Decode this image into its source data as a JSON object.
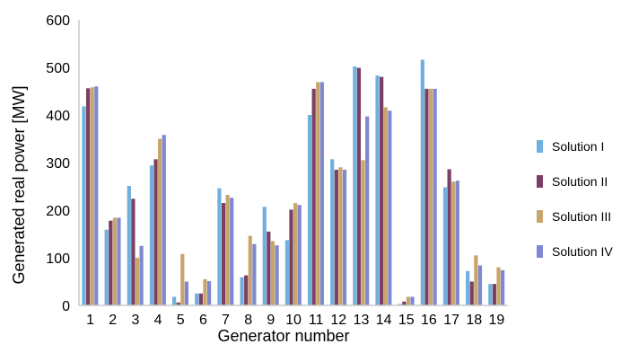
{
  "chart_data": {
    "type": "bar",
    "xlabel": "Generator number",
    "ylabel": "Generated real power [MW]",
    "ylim": [
      0,
      600
    ],
    "yticks": [
      0,
      100,
      200,
      300,
      400,
      500,
      600
    ],
    "grid": false,
    "legend_position": "right",
    "categories": [
      "1",
      "2",
      "3",
      "4",
      "5",
      "6",
      "7",
      "8",
      "9",
      "10",
      "11",
      "12",
      "13",
      "14",
      "15",
      "16",
      "17",
      "18",
      "19"
    ],
    "series": [
      {
        "name": "Solution I",
        "color": "#6fb0dc",
        "values": [
          418,
          159,
          251,
          294,
          18,
          25,
          246,
          59,
          207,
          137,
          400,
          307,
          502,
          483,
          3,
          516,
          248,
          72,
          45
        ]
      },
      {
        "name": "Solution II",
        "color": "#7b3f63",
        "values": [
          456,
          178,
          224,
          307,
          6,
          25,
          215,
          63,
          155,
          201,
          455,
          285,
          499,
          480,
          8,
          455,
          286,
          50,
          45
        ]
      },
      {
        "name": "Solution III",
        "color": "#c8a56a",
        "values": [
          458,
          184,
          100,
          350,
          108,
          55,
          232,
          146,
          135,
          215,
          469,
          290,
          305,
          416,
          18,
          455,
          260,
          105,
          80
        ]
      },
      {
        "name": "Solution IV",
        "color": "#7f88d0",
        "values": [
          460,
          184,
          125,
          358,
          50,
          51,
          226,
          129,
          126,
          211,
          469,
          285,
          397,
          409,
          18,
          455,
          262,
          84,
          74
        ]
      }
    ]
  }
}
